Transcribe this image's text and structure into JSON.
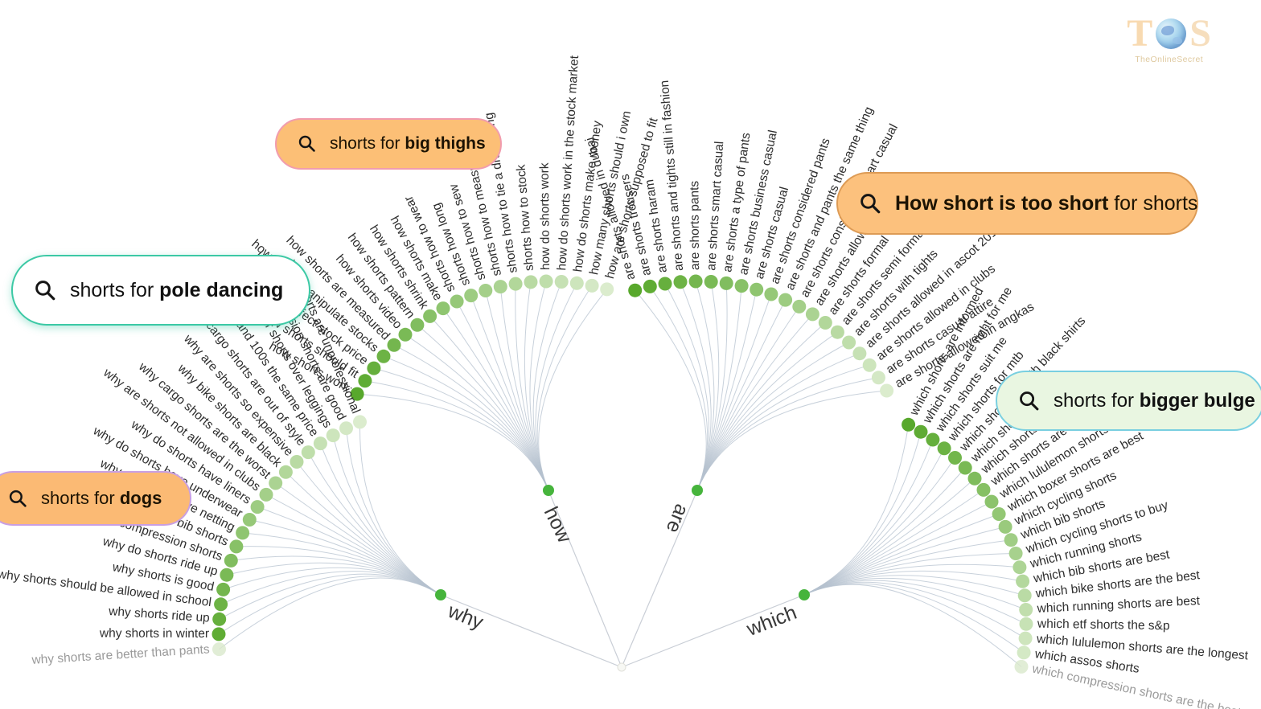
{
  "logo": {
    "t": "T",
    "s": "S",
    "subtitle": "TheOnlineSecret"
  },
  "colors": {
    "dot_gradient_dark": "#58a82c",
    "dot_gradient_light": "#dbeccd",
    "dot_faded": "#d9e9cc",
    "hub_dot": "#46b43c",
    "edge_line": "#b5c1cf",
    "root_line": "#c9ced6",
    "label_text": "#2e2e2e",
    "label_faded": "#9a9a9a",
    "branch_word": "#3a3a3a"
  },
  "pills": [
    {
      "id": "big-thighs",
      "bg": "#fcbf76",
      "border": "#f19cae",
      "text_color": "#1c1303",
      "parts": [
        {
          "text": "shorts for ",
          "bold": false
        },
        {
          "text": "big thighs",
          "bold": true
        }
      ]
    },
    {
      "id": "pole-dancing",
      "bg": "#ffffff",
      "border": "#3cc9a5",
      "text_color": "#111111",
      "parts": [
        {
          "text": "shorts for ",
          "bold": false
        },
        {
          "text": "pole dancing",
          "bold": true
        }
      ]
    },
    {
      "id": "dogs",
      "bg": "#fbba74",
      "border": "#c89fe3",
      "text_color": "#1c1303",
      "parts": [
        {
          "text": "shorts for ",
          "bold": false
        },
        {
          "text": "dogs",
          "bold": true
        }
      ]
    },
    {
      "id": "how-short",
      "bg": "#fcc17d",
      "border": "#dd9b55",
      "text_color": "#1c1303",
      "parts": [
        {
          "text": "How short is too short",
          "bold": true
        },
        {
          "text": " for shorts",
          "bold": false
        }
      ]
    },
    {
      "id": "bigger-bulge",
      "bg": "#e9f6e1",
      "border": "#79cfe0",
      "text_color": "#111111",
      "parts": [
        {
          "text": "shorts for ",
          "bold": false
        },
        {
          "text": "bigger bulge",
          "bold": true
        }
      ]
    }
  ],
  "branches": [
    {
      "word": "how",
      "items": [
        {
          "label": "how shorts work"
        },
        {
          "label": "how shorts should fit"
        },
        {
          "label": "how shorts affect stock price"
        },
        {
          "label": "how shorts manipulate stocks"
        },
        {
          "label": "how shorts are measured"
        },
        {
          "label": "how shorts video"
        },
        {
          "label": "how shorts pattern"
        },
        {
          "label": "how shorts shrink"
        },
        {
          "label": "how shorts make"
        },
        {
          "label": "shorts how to wear"
        },
        {
          "label": "shorts how long"
        },
        {
          "label": "shorts how to sew"
        },
        {
          "label": "shorts how to measure rise"
        },
        {
          "label": "shorts how to tie a drawstring"
        },
        {
          "label": "shorts how to stock"
        },
        {
          "label": "how do shorts work"
        },
        {
          "label": "how do shorts work in the stock market"
        },
        {
          "label": "how do shorts make money"
        },
        {
          "label": "how many shorts should i own"
        },
        {
          "label": "how are shorts supposed to fit"
        }
      ]
    },
    {
      "word": "are",
      "items": [
        {
          "label": "are shorts allowed in dubai"
        },
        {
          "label": "are shorts trousers"
        },
        {
          "label": "are shorts haram"
        },
        {
          "label": "are shorts and tights still in fashion"
        },
        {
          "label": "are shorts pants"
        },
        {
          "label": "are shorts smart casual"
        },
        {
          "label": "are shorts a type of pants"
        },
        {
          "label": "are shorts business casual"
        },
        {
          "label": "are shorts casual"
        },
        {
          "label": "are shorts considered pants"
        },
        {
          "label": "are shorts and pants the same thing"
        },
        {
          "label": "are shorts considered smart casual"
        },
        {
          "label": "are shorts allowed in church"
        },
        {
          "label": "are shorts formal"
        },
        {
          "label": "are shorts semi formal"
        },
        {
          "label": "are shorts with tights"
        },
        {
          "label": "are shorts allowed in ascot 2019"
        },
        {
          "label": "are shorts allowed in clubs"
        },
        {
          "label": "are shorts casual attire"
        },
        {
          "label": "are shorts allowed in angkas"
        }
      ]
    },
    {
      "word": "why",
      "items": [
        {
          "label": "why shorts are unprofessional"
        },
        {
          "label": "why compression shorts are good"
        },
        {
          "label": "why wear shorts over leggings"
        },
        {
          "label": "why shorts and 100s the same price"
        },
        {
          "label": "why cargo shorts are out of style"
        },
        {
          "label": "why are shorts so expensive"
        },
        {
          "label": "why bike shorts are black"
        },
        {
          "label": "why cargo shorts are the worst"
        },
        {
          "label": "why are shorts not allowed in clubs"
        },
        {
          "label": "why do shorts have liners"
        },
        {
          "label": "why do shorts have underwear"
        },
        {
          "label": "why do shorts have netting"
        },
        {
          "label": "why bib shorts"
        },
        {
          "label": "why compression shorts"
        },
        {
          "label": "why do shorts ride up"
        },
        {
          "label": "why shorts is good"
        },
        {
          "label": "why shorts should be allowed in school"
        },
        {
          "label": "why shorts ride up"
        },
        {
          "label": "why shorts in winter"
        },
        {
          "label": "why shorts are better than pants",
          "faded": true
        }
      ]
    },
    {
      "word": "which",
      "items": [
        {
          "label": "which shorts are informed"
        },
        {
          "label": "which shorts are right for me"
        },
        {
          "label": "which shorts suit me"
        },
        {
          "label": "which shorts for mtb"
        },
        {
          "label": "which shorts go with black shirts"
        },
        {
          "label": "which shorts to wear"
        },
        {
          "label": "which shorts to buy"
        },
        {
          "label": "which shorts are best"
        },
        {
          "label": "which lululemon shorts"
        },
        {
          "label": "which boxer shorts are best"
        },
        {
          "label": "which cycling shorts"
        },
        {
          "label": "which bib shorts"
        },
        {
          "label": "which cycling shorts to buy"
        },
        {
          "label": "which running shorts"
        },
        {
          "label": "which bib shorts are best"
        },
        {
          "label": "which bike shorts are the best"
        },
        {
          "label": "which running shorts are best"
        },
        {
          "label": "which etf shorts the s&p"
        },
        {
          "label": "which lululemon shorts are the longest"
        },
        {
          "label": "which assos shorts"
        },
        {
          "label": "which compression shorts are the best",
          "faded": true
        }
      ]
    }
  ]
}
